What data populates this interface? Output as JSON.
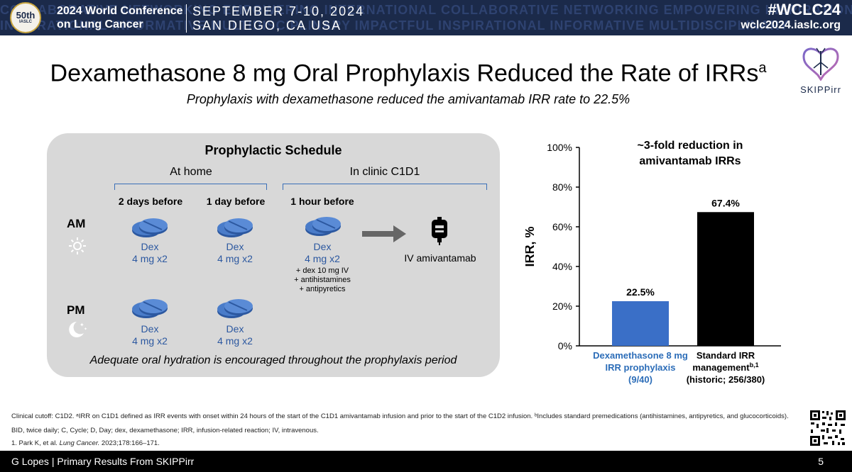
{
  "header": {
    "logo_text": "50th",
    "logo_sub": "IASLC",
    "conference_line1": "2024 World Conference",
    "conference_line2": "on Lung Cancer",
    "date_line1": "SEPTEMBER 7-10, 2024",
    "date_line2": "SAN DIEGO, CA USA",
    "hashtag": "#WCLC24",
    "website": "wclc2024.iaslc.org",
    "background_words_line1": "COLLABORATIVE NETWORKING EMPOWERING INTERNATIONAL COLLABORATIVE NETWORKING EMPOWERING INSPIRATIONAL",
    "background_words_line2": "INSPIRATIONAL INFORMATIVE MULTIDISCIPLINARY IMPACTFUL INSPIRATIONAL INFORMATIVE MULTIDISCIPLINARY"
  },
  "slide": {
    "title": "Dexamethasone 8 mg Oral Prophylaxis Reduced the Rate of IRRs",
    "title_sup": "a",
    "subtitle": "Prophylaxis with dexamethasone reduced the amivantamab IRR rate to 22.5%",
    "brand": "SKIPPirr"
  },
  "schedule": {
    "title": "Prophylactic Schedule",
    "group_home": "At home",
    "group_clinic": "In clinic C1D1",
    "col_2days": "2 days before",
    "col_1day": "1 day before",
    "col_1hour": "1 hour before",
    "am": "AM",
    "pm": "PM",
    "dex": "Dex",
    "dose": "4 mg x2",
    "extra1": "+ dex 10 mg IV",
    "extra2": "+ antihistamines",
    "extra3": "+ antipyretics",
    "iv_label": "IV amivantamab",
    "hydration": "Adequate oral hydration is encouraged throughout the prophylaxis period",
    "colors": {
      "pill": "#2c58a0",
      "bracket": "#3a6fb8",
      "box": "#d8d8d8"
    }
  },
  "chart_data": {
    "type": "bar",
    "title_line1": "~3-fold reduction in",
    "title_line2": "amivantamab IRRs",
    "ylabel": "IRR, %",
    "ylim": [
      0,
      100
    ],
    "yticks": [
      "0%",
      "20%",
      "40%",
      "60%",
      "80%",
      "100%"
    ],
    "ytick_values": [
      0,
      20,
      40,
      60,
      80,
      100
    ],
    "categories": [
      {
        "line1": "Dexamethasone 8 mg",
        "line2": "IRR prophylaxis",
        "line3": "(9/40)",
        "sup": ""
      },
      {
        "line1": "Standard IRR",
        "line2": "management",
        "line3": "(historic; 256/380)",
        "sup": "b,1"
      }
    ],
    "values": [
      22.5,
      67.4
    ],
    "value_labels": [
      "22.5%",
      "67.4%"
    ],
    "colors": [
      "#3a6fc7",
      "#000000"
    ],
    "category_colors": [
      "#2c6db8",
      "#000000"
    ]
  },
  "footnotes": {
    "line1": "Clinical cutoff: C1D2. ᵃIRR on C1D1 defined as IRR events with onset within 24 hours of the start of the C1D1 amivantamab infusion and prior to the start of the C1D2 infusion. ᵇIncludes standard premedications (antihistamines, antipyretics, and glucocorticoids).",
    "line2": "BID, twice daily; C, Cycle; D, Day; dex, dexamethasone; IRR, infusion-related reaction; IV, intravenous.",
    "line3_pre": "1. Park K, et al. ",
    "line3_journal": "Lung Cancer.",
    "line3_post": " 2023;178:166–171."
  },
  "bottom": {
    "presenter": "G Lopes",
    "separator": " | ",
    "talk": "Primary Results From SKIPPirr",
    "page": "5"
  }
}
